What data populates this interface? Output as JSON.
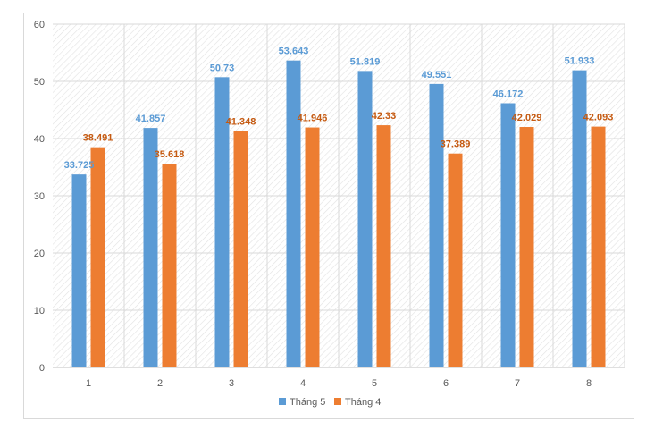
{
  "chart_data": {
    "type": "bar",
    "title": "",
    "xlabel": "",
    "ylabel": "",
    "categories": [
      "1",
      "2",
      "3",
      "4",
      "5",
      "6",
      "7",
      "8"
    ],
    "ylim": [
      0,
      60
    ],
    "yticks": [
      "0",
      "10",
      "20",
      "30",
      "40",
      "50",
      "60"
    ],
    "grid": true,
    "legend_position": "bottom",
    "series": [
      {
        "name": "Tháng 5",
        "color": "#5b9bd5",
        "label_color": "#5b9bd5",
        "values": [
          33.725,
          41.857,
          50.73,
          53.643,
          51.819,
          49.551,
          46.172,
          51.933
        ],
        "labels": [
          "33.725",
          "41.857",
          "50.73",
          "53.643",
          "51.819",
          "49.551",
          "46.172",
          "51.933"
        ]
      },
      {
        "name": "Tháng 4",
        "color": "#ed7d31",
        "label_color": "#c55a11",
        "values": [
          38.491,
          35.618,
          41.348,
          41.946,
          42.33,
          37.389,
          42.029,
          42.093
        ],
        "labels": [
          "38.491",
          "35.618",
          "41.348",
          "41.946",
          "42.33",
          "37.389",
          "42.029",
          "42.093"
        ]
      }
    ]
  }
}
